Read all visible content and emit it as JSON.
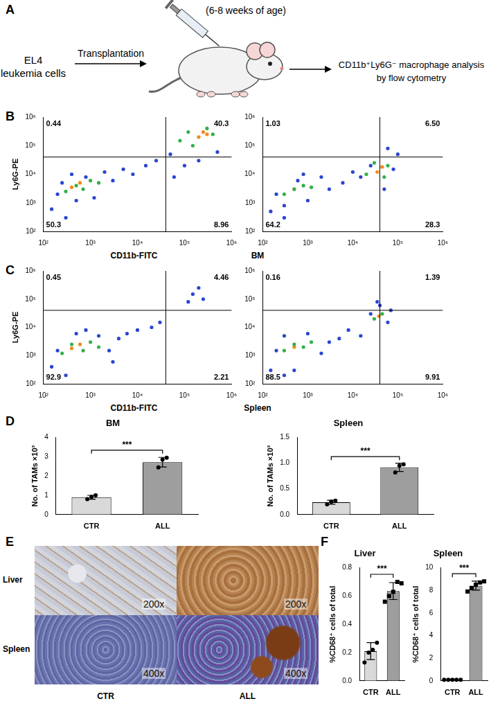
{
  "panel_labels": [
    "A",
    "B",
    "C",
    "D",
    "E",
    "F"
  ],
  "diagram": {
    "source": [
      "EL4",
      "leukemia cells"
    ],
    "step": "Transplantation",
    "host_note": "(6-8 weeks of  age)",
    "readout": [
      "CD11b⁺Ly6G⁻ macrophage analysis",
      "by flow cytometry"
    ]
  },
  "tissue_labels": [
    "BM",
    "Spleen"
  ],
  "chart_data": [
    {
      "type": "scatter",
      "log": true,
      "grid": false,
      "x_label": "CD11b-FITC",
      "y_label": "Ly6G-PE",
      "xlim": [
        100,
        1000000
      ],
      "ylim": [
        100,
        1000000
      ],
      "xticks": [
        {
          "value": 100,
          "label": "10²"
        },
        {
          "value": 1000,
          "label": "10³"
        },
        {
          "value": 10000,
          "label": "10⁴"
        },
        {
          "value": 100000,
          "label": "10⁵"
        },
        {
          "value": 1000000,
          "label": "10⁶"
        }
      ],
      "yticks": [
        {
          "value": 100,
          "label": "10²"
        },
        {
          "value": 1000,
          "label": "10³"
        },
        {
          "value": 10000,
          "label": "10⁴"
        },
        {
          "value": 100000,
          "label": "10⁵"
        },
        {
          "value": 1000000,
          "label": "10⁶"
        }
      ],
      "gates": {
        "x": 40000,
        "y": 40000
      },
      "quadrants": {
        "values": [
          0.44,
          40.3,
          50.3,
          8.96
        ],
        "value_labels": [
          "0.44",
          "40.3",
          "50.3",
          "8.96"
        ]
      },
      "series": [
        {
          "color": "#2b46d0",
          "x": [
            150,
            200,
            300,
            500,
            250,
            800,
            1200,
            2000,
            3000,
            5000,
            8000,
            15000,
            25000,
            60000,
            100000,
            200000,
            500000,
            50000,
            400
          ],
          "y": [
            600,
            2000,
            300,
            1200,
            5000,
            8000,
            1500,
            12000,
            6000,
            15000,
            10000,
            20000,
            30000,
            8000,
            20000,
            30000,
            60000,
            50000,
            10000
          ]
        },
        {
          "color": "#35b04a",
          "x": [
            300,
            500,
            700,
            1000,
            1500,
            80000,
            150000,
            300000,
            400000,
            120000
          ],
          "y": [
            2500,
            4000,
            3000,
            6000,
            5000,
            150000,
            100000,
            400000,
            250000,
            300000
          ]
        },
        {
          "color": "#f08a1c",
          "x": [
            400,
            600,
            200000,
            250000,
            300000
          ],
          "y": [
            3500,
            5000,
            200000,
            300000,
            250000
          ]
        }
      ]
    },
    {
      "type": "scatter",
      "log": true,
      "grid": false,
      "xlim": [
        100,
        1000000
      ],
      "ylim": [
        100,
        1000000
      ],
      "xticks": [
        {
          "value": 100,
          "label": "10²"
        },
        {
          "value": 1000,
          "label": "10³"
        },
        {
          "value": 10000,
          "label": "10⁴"
        },
        {
          "value": 100000,
          "label": "10⁵"
        },
        {
          "value": 1000000,
          "label": "10⁶"
        }
      ],
      "yticks": [
        {
          "value": 100,
          "label": "10²"
        },
        {
          "value": 1000,
          "label": "10³"
        },
        {
          "value": 10000,
          "label": "10⁴"
        },
        {
          "value": 100000,
          "label": "10⁵"
        },
        {
          "value": 1000000,
          "label": "10⁶"
        }
      ],
      "gates": {
        "x": 40000,
        "y": 40000
      },
      "quadrants": {
        "values": [
          1.03,
          6.5,
          64.2,
          28.3
        ],
        "value_labels": [
          "1.03",
          "6.50",
          "64.2",
          "28.3"
        ]
      },
      "series": [
        {
          "color": "#2b46d0",
          "x": [
            150,
            200,
            300,
            600,
            1000,
            2000,
            3000,
            6000,
            10000,
            15000,
            25000,
            80000,
            100000,
            60000,
            50000,
            300,
            800
          ],
          "y": [
            500,
            2000,
            300,
            6000,
            1200,
            8000,
            3000,
            5000,
            12000,
            8000,
            20000,
            15000,
            50000,
            80000,
            3000,
            800,
            10000
          ]
        },
        {
          "color": "#35b04a",
          "x": [
            300,
            500,
            800,
            1200,
            20000,
            30000,
            60000,
            50000
          ],
          "y": [
            2000,
            3000,
            4000,
            3500,
            10000,
            25000,
            20000,
            8000
          ]
        },
        {
          "color": "#f08a1c",
          "x": [
            500,
            35000,
            45000
          ],
          "y": [
            3000,
            12000,
            18000
          ]
        }
      ]
    },
    {
      "type": "scatter",
      "log": true,
      "grid": false,
      "x_label": "CD11b-FITC",
      "y_label": "Ly6G-PE",
      "xlim": [
        100,
        1000000
      ],
      "ylim": [
        100,
        1000000
      ],
      "xticks": [
        {
          "value": 100,
          "label": "10²"
        },
        {
          "value": 1000,
          "label": "10³"
        },
        {
          "value": 10000,
          "label": "10⁴"
        },
        {
          "value": 100000,
          "label": "10⁵"
        },
        {
          "value": 1000000,
          "label": "10⁶"
        }
      ],
      "yticks": [
        {
          "value": 100,
          "label": "10²"
        },
        {
          "value": 1000,
          "label": "10³"
        },
        {
          "value": 10000,
          "label": "10⁴"
        },
        {
          "value": 100000,
          "label": "10⁵"
        },
        {
          "value": 1000000,
          "label": "10⁶"
        }
      ],
      "gates": {
        "x": 40000,
        "y": 40000
      },
      "quadrants": {
        "values": [
          0.45,
          4.46,
          92.9,
          2.21
        ],
        "value_labels": [
          "0.45",
          "4.46",
          "92.9",
          "2.21"
        ]
      },
      "series": [
        {
          "color": "#2b46d0",
          "x": [
            150,
            200,
            300,
            500,
            1500,
            2500,
            4000,
            6000,
            10000,
            20000,
            30000,
            150000,
            200000,
            250000,
            120000,
            800,
            3000
          ],
          "y": [
            400,
            1500,
            200,
            6000,
            5000,
            1500,
            4000,
            6000,
            8000,
            10000,
            15000,
            150000,
            250000,
            100000,
            80000,
            8000,
            600
          ]
        },
        {
          "color": "#35b04a",
          "x": [
            250,
            400,
            700,
            1000,
            1500
          ],
          "y": [
            1200,
            2500,
            1500,
            3000,
            2000
          ]
        },
        {
          "color": "#f08a1c",
          "x": [
            400,
            600
          ],
          "y": [
            1800,
            2500
          ]
        }
      ]
    },
    {
      "type": "scatter",
      "log": true,
      "grid": false,
      "xlim": [
        100,
        1000000
      ],
      "ylim": [
        100,
        1000000
      ],
      "xticks": [
        {
          "value": 100,
          "label": "10²"
        },
        {
          "value": 1000,
          "label": "10³"
        },
        {
          "value": 10000,
          "label": "10⁴"
        },
        {
          "value": 100000,
          "label": "10⁵"
        },
        {
          "value": 1000000,
          "label": "10⁶"
        }
      ],
      "yticks": [
        {
          "value": 100,
          "label": "10²"
        },
        {
          "value": 1000,
          "label": "10³"
        },
        {
          "value": 10000,
          "label": "10⁴"
        },
        {
          "value": 100000,
          "label": "10⁵"
        },
        {
          "value": 1000000,
          "label": "10⁶"
        }
      ],
      "gates": {
        "x": 40000,
        "y": 40000
      },
      "quadrants": {
        "values": [
          0.16,
          1.39,
          88.5,
          9.91
        ],
        "value_labels": [
          "0.16",
          "1.39",
          "88.5",
          "9.91"
        ]
      },
      "series": [
        {
          "color": "#2b46d0",
          "x": [
            150,
            200,
            300,
            500,
            1000,
            2000,
            3000,
            5000,
            8000,
            15000,
            25000,
            40000,
            60000,
            35000,
            70000,
            300
          ],
          "y": [
            300,
            1500,
            5000,
            300,
            6000,
            1200,
            3000,
            4000,
            8000,
            5000,
            30000,
            60000,
            15000,
            80000,
            40000,
            200
          ]
        },
        {
          "color": "#35b04a",
          "x": [
            300,
            500,
            800,
            1200,
            30000,
            45000
          ],
          "y": [
            1500,
            2500,
            2000,
            3000,
            20000,
            30000
          ]
        },
        {
          "color": "#f08a1c",
          "x": [
            500,
            38000
          ],
          "y": [
            2000,
            25000
          ]
        }
      ]
    },
    {
      "type": "bar",
      "title": "BM",
      "y_label": "No. of TAMs ×10³",
      "grid": false,
      "categories": [
        "CTR",
        "ALL"
      ],
      "values": [
        0.9,
        2.72
      ],
      "errors": [
        0.1,
        0.25
      ],
      "colors": [
        "#d9d9d9",
        "#9e9e9e"
      ],
      "points": [
        {
          "marker": "circle",
          "values": [
            0.8,
            0.92,
            1.0
          ]
        },
        {
          "marker": "circle",
          "values": [
            2.45,
            2.85,
            2.95
          ]
        }
      ],
      "ylim": [
        0,
        4
      ],
      "yticks": [
        0,
        1,
        2,
        3,
        4
      ],
      "annotations": [
        "***"
      ]
    },
    {
      "type": "bar",
      "title": "Spleen",
      "y_label": "No. of TAMs ×10³",
      "grid": false,
      "categories": [
        "CTR",
        "ALL"
      ],
      "values": [
        0.24,
        0.92
      ],
      "errors": [
        0.04,
        0.08
      ],
      "colors": [
        "#d9d9d9",
        "#9e9e9e"
      ],
      "points": [
        {
          "marker": "circle",
          "values": [
            0.2,
            0.25,
            0.27
          ]
        },
        {
          "marker": "circle",
          "values": [
            0.82,
            0.95,
            0.98
          ]
        }
      ],
      "ylim": [
        0,
        1.5
      ],
      "yticks": [
        {
          "value": 0,
          "label": "0.0"
        },
        {
          "value": 0.5,
          "label": "0.5"
        },
        {
          "value": 1,
          "label": "1.0"
        },
        {
          "value": 1.5,
          "label": "1.5"
        }
      ],
      "annotations": [
        "***"
      ]
    },
    {
      "type": "bar",
      "title": "Liver",
      "y_label": "%CD68⁺ cells of total",
      "grid": false,
      "categories": [
        "CTR",
        "ALL"
      ],
      "values": [
        0.21,
        0.635
      ],
      "errors": [
        0.06,
        0.06
      ],
      "colors": [
        "#d9d9d9",
        "#9e9e9e"
      ],
      "points": [
        {
          "marker": "circle",
          "values": [
            0.13,
            0.2,
            0.22,
            0.27
          ]
        },
        {
          "marker": "square",
          "values": [
            0.56,
            0.6,
            0.63,
            0.7,
            0.69
          ]
        }
      ],
      "ylim": [
        0,
        0.8
      ],
      "yticks": [
        {
          "value": 0,
          "label": "0.0"
        },
        {
          "value": 0.2,
          "label": "0.2"
        },
        {
          "value": 0.4,
          "label": "0.4"
        },
        {
          "value": 0.6,
          "label": "0.6"
        },
        {
          "value": 0.8,
          "label": "0.8"
        }
      ],
      "annotations": [
        "***"
      ]
    },
    {
      "type": "bar",
      "title": "Spleen",
      "y_label": "%CD68⁺ cells of total",
      "grid": false,
      "categories": [
        "CTR",
        "ALL"
      ],
      "values": [
        0.1,
        8.42
      ],
      "errors": [
        0.05,
        0.4
      ],
      "colors": [
        "#d9d9d9",
        "#9e9e9e"
      ],
      "points": [
        {
          "marker": "circle",
          "values": [
            0.1,
            0.1,
            0.1,
            0.1,
            0.1
          ]
        },
        {
          "marker": "square",
          "values": [
            7.9,
            8.2,
            8.5,
            8.7,
            8.8
          ]
        }
      ],
      "ylim": [
        0,
        10
      ],
      "yticks": [
        0,
        2,
        4,
        6,
        8,
        10
      ],
      "annotations": [
        "***"
      ]
    }
  ],
  "images": {
    "row_labels": [
      "Liver",
      "Spleen"
    ],
    "column_labels": [
      "CTR",
      "ALL"
    ],
    "magnifications": [
      [
        "200x",
        "200x"
      ],
      [
        "400x",
        "400x"
      ]
    ]
  }
}
